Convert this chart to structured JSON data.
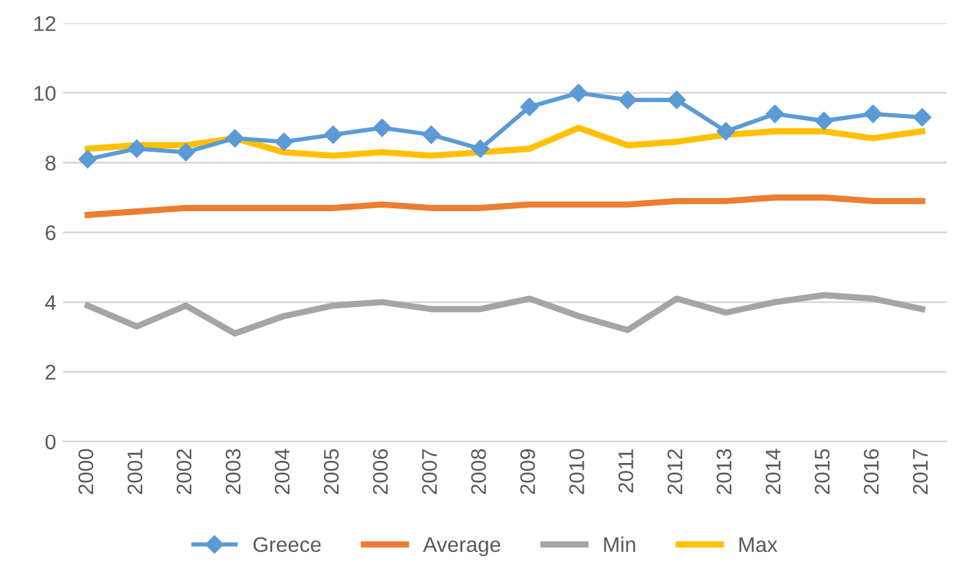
{
  "chart_data": {
    "type": "line",
    "categories": [
      "2000",
      "2001",
      "2002",
      "2003",
      "2004",
      "2005",
      "2006",
      "2007",
      "2008",
      "2009",
      "2010",
      "2011",
      "2012",
      "2013",
      "2014",
      "2015",
      "2016",
      "2017"
    ],
    "series": [
      {
        "name": "Greece",
        "color": "#5b9bd5",
        "marker": "diamond",
        "values": [
          8.1,
          8.4,
          8.3,
          8.7,
          8.6,
          8.8,
          9.0,
          8.8,
          8.4,
          9.6,
          10.0,
          9.8,
          9.8,
          8.9,
          9.4,
          9.2,
          9.4,
          9.3
        ]
      },
      {
        "name": "Average",
        "color": "#ed7d31",
        "marker": "none",
        "values": [
          6.5,
          6.6,
          6.7,
          6.7,
          6.7,
          6.7,
          6.8,
          6.7,
          6.7,
          6.8,
          6.8,
          6.8,
          6.9,
          6.9,
          7.0,
          7.0,
          6.9,
          6.9
        ]
      },
      {
        "name": "Min",
        "color": "#a5a5a5",
        "marker": "none",
        "values": [
          3.9,
          3.3,
          3.9,
          3.1,
          3.6,
          3.9,
          4.0,
          3.8,
          3.8,
          4.1,
          3.6,
          3.2,
          4.1,
          3.7,
          4.0,
          4.2,
          4.1,
          3.8
        ]
      },
      {
        "name": "Max",
        "color": "#ffc000",
        "marker": "none",
        "values": [
          8.4,
          8.5,
          8.5,
          8.7,
          8.3,
          8.2,
          8.3,
          8.2,
          8.3,
          8.4,
          9.0,
          8.5,
          8.6,
          8.8,
          8.9,
          8.9,
          8.7,
          8.9
        ]
      }
    ],
    "ylim": [
      0,
      12
    ],
    "yticks": [
      0,
      2,
      4,
      6,
      8,
      10,
      12
    ],
    "grid": "y",
    "legend": "bottom",
    "line_style": "solid"
  }
}
